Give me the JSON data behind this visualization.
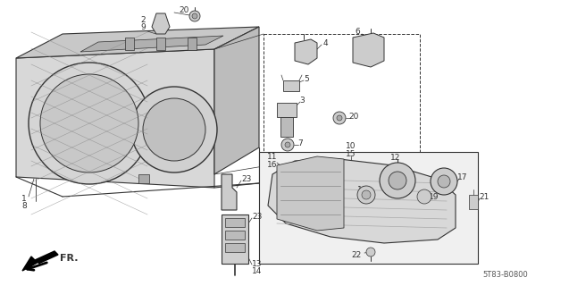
{
  "background_color": "#ffffff",
  "diagram_code": "5T83-B0800",
  "line_color": "#333333",
  "light_fill": "#e8e8e8",
  "figsize": [
    6.37,
    3.2
  ],
  "dpi": 100
}
